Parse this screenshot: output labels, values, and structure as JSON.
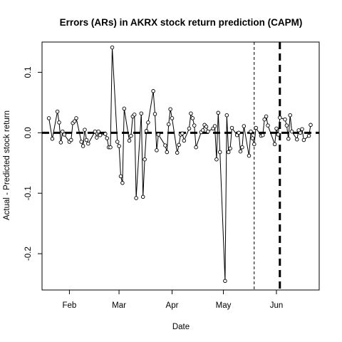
{
  "chart_data": {
    "type": "line",
    "title": "Errors (ARs) in AKRX stock return prediction (CAPM)",
    "xlabel": "Date",
    "ylabel": "Actual - Predicted stock return",
    "xlim": [
      "2016-01-16",
      "2016-06-26"
    ],
    "ylim": [
      -0.26,
      0.15
    ],
    "x_ticks": [
      {
        "label": "Feb",
        "date": "2016-02-01"
      },
      {
        "label": "Mar",
        "date": "2016-03-01"
      },
      {
        "label": "Apr",
        "date": "2016-04-01"
      },
      {
        "label": "May",
        "date": "2016-05-01"
      },
      {
        "label": "Jun",
        "date": "2016-06-01"
      }
    ],
    "y_ticks": [
      {
        "label": "0.1",
        "value": 0.1
      },
      {
        "label": "0.0",
        "value": 0.0
      },
      {
        "label": "-0.1",
        "value": -0.1
      },
      {
        "label": "-0.2",
        "value": -0.2
      }
    ],
    "hline": {
      "value": 0,
      "style": "thick-dashed"
    },
    "vlines": [
      {
        "date": "2016-05-19",
        "style": "thin-dashed"
      },
      {
        "date": "2016-06-03",
        "style": "thick-dashed"
      }
    ],
    "series": [
      {
        "style": "line+points",
        "x": [
          "2016-01-20",
          "2016-01-22",
          "2016-01-25",
          "2016-01-26",
          "2016-01-27",
          "2016-01-28",
          "2016-01-29",
          "2016-02-01",
          "2016-02-02",
          "2016-02-03",
          "2016-02-04",
          "2016-02-05",
          "2016-02-08",
          "2016-02-09",
          "2016-02-10",
          "2016-02-11",
          "2016-02-12",
          "2016-02-16",
          "2016-02-17",
          "2016-02-18",
          "2016-02-19",
          "2016-02-22",
          "2016-02-23",
          "2016-02-24",
          "2016-02-25",
          "2016-02-26",
          "2016-02-29",
          "2016-03-01",
          "2016-03-02",
          "2016-03-03",
          "2016-03-04",
          "2016-03-07",
          "2016-03-08",
          "2016-03-09",
          "2016-03-10",
          "2016-03-11",
          "2016-03-14",
          "2016-03-15",
          "2016-03-16",
          "2016-03-17",
          "2016-03-18",
          "2016-03-21",
          "2016-03-22",
          "2016-03-23",
          "2016-03-24",
          "2016-03-28",
          "2016-03-29",
          "2016-03-30",
          "2016-03-31",
          "2016-04-01",
          "2016-04-04",
          "2016-04-05",
          "2016-04-06",
          "2016-04-07",
          "2016-04-08",
          "2016-04-11",
          "2016-04-12",
          "2016-04-13",
          "2016-04-14",
          "2016-04-15",
          "2016-04-18",
          "2016-04-19",
          "2016-04-20",
          "2016-04-21",
          "2016-04-22",
          "2016-04-25",
          "2016-04-26",
          "2016-04-27",
          "2016-04-28",
          "2016-04-29",
          "2016-05-02",
          "2016-05-03",
          "2016-05-04",
          "2016-05-05",
          "2016-05-06",
          "2016-05-09",
          "2016-05-10",
          "2016-05-11",
          "2016-05-12",
          "2016-05-13",
          "2016-05-16",
          "2016-05-17",
          "2016-05-18",
          "2016-05-19",
          "2016-05-20",
          "2016-05-23",
          "2016-05-24",
          "2016-05-25",
          "2016-05-26",
          "2016-05-27",
          "2016-05-31",
          "2016-06-01",
          "2016-06-02",
          "2016-06-03",
          "2016-06-06",
          "2016-06-07",
          "2016-06-08",
          "2016-06-09",
          "2016-06-10",
          "2016-06-13",
          "2016-06-14",
          "2016-06-15",
          "2016-06-16",
          "2016-06-17",
          "2016-06-20",
          "2016-06-21"
        ],
        "y": [
          0.024,
          -0.01,
          0.035,
          0.017,
          -0.016,
          0.002,
          -0.003,
          -0.015,
          -0.012,
          0.016,
          0.019,
          0.024,
          -0.015,
          -0.022,
          0.005,
          -0.012,
          -0.018,
          0.002,
          -0.008,
          0.002,
          -0.004,
          -0.002,
          -0.009,
          -0.024,
          -0.024,
          0.141,
          -0.015,
          -0.022,
          -0.072,
          -0.083,
          0.04,
          -0.013,
          -0.005,
          0.027,
          0.03,
          -0.108,
          0.032,
          -0.106,
          -0.044,
          0.003,
          0.017,
          0.069,
          0.031,
          -0.029,
          -0.003,
          -0.021,
          -0.032,
          0.014,
          0.039,
          0.024,
          -0.033,
          -0.02,
          -0.003,
          -0.001,
          -0.013,
          0.007,
          0.032,
          0.024,
          0.012,
          -0.024,
          0.001,
          0.004,
          0.013,
          0.01,
          0.002,
          0.007,
          0.011,
          -0.044,
          0.033,
          -0.032,
          -0.245,
          0.029,
          -0.032,
          -0.026,
          0.008,
          -0.004,
          0.0,
          -0.031,
          -0.024,
          0.011,
          -0.038,
          0.002,
          -0.009,
          -0.019,
          0.008,
          -0.005,
          -0.004,
          0.022,
          0.027,
          0.012,
          -0.019,
          0.007,
          -0.003,
          0.025,
          0.022,
          0.012,
          -0.01,
          0.029,
          0.002,
          -0.011,
          0.004,
          0.0,
          0.006,
          -0.012,
          -0.005,
          0.013
        ]
      }
    ]
  }
}
